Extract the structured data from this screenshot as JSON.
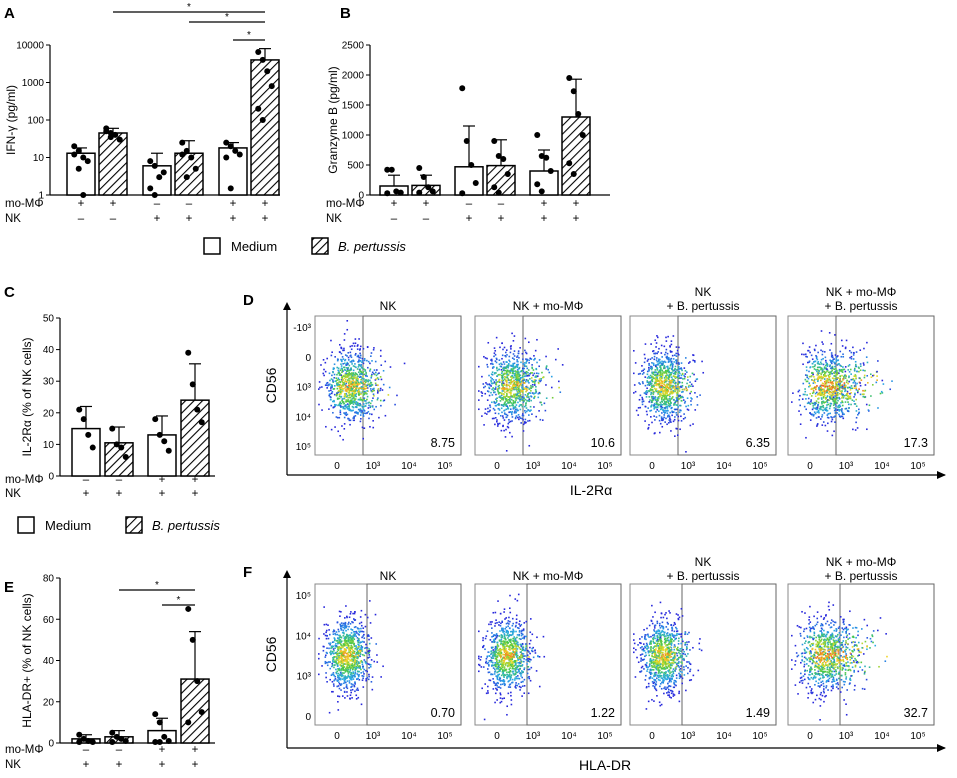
{
  "legend_medium": "Medium",
  "legend_bp": "B. pertussis",
  "markers": {
    "momphi": "mo-MΦ",
    "nk": "NK"
  },
  "chart_data": [
    {
      "panel": "A",
      "type": "bar",
      "ylabel": "IFN-γ (pg/ml)",
      "yscale": "log",
      "ylim": [
        1,
        10000
      ],
      "yticks": [
        {
          "v": 1,
          "label": "1"
        },
        {
          "v": 10,
          "label": "10"
        },
        {
          "v": 100,
          "label": "100"
        },
        {
          "v": 1000,
          "label": "1000"
        },
        {
          "v": 10000,
          "label": "10000"
        }
      ],
      "groups": [
        {
          "momphi": "+",
          "nk": "–"
        },
        {
          "momphi": "–",
          "nk": "+"
        },
        {
          "momphi": "+",
          "nk": "+"
        }
      ],
      "series": [
        {
          "name": "Medium",
          "values": [
            13,
            6,
            18
          ],
          "err_hi": [
            18,
            13,
            25
          ]
        },
        {
          "name": "B. pertussis",
          "values": [
            45,
            13,
            4000
          ],
          "err_hi": [
            60,
            28,
            8000
          ]
        }
      ],
      "points": [
        [
          [
            20,
            15,
            10,
            8,
            12,
            5,
            1
          ],
          [
            60,
            45,
            40,
            30,
            50,
            35
          ]
        ],
        [
          [
            8,
            6,
            3,
            4,
            1.5,
            1
          ],
          [
            25,
            15,
            10,
            5,
            12,
            3
          ]
        ],
        [
          [
            25,
            20,
            15,
            12,
            10,
            1.5
          ],
          [
            6500,
            4000,
            2000,
            800,
            200,
            100
          ]
        ]
      ],
      "significance": [
        {
          "from": [
            0,
            1
          ],
          "to": [
            2,
            1
          ],
          "label": "*"
        },
        {
          "from": [
            1,
            1
          ],
          "to": [
            2,
            1
          ],
          "label": "*"
        },
        {
          "from": [
            2,
            0
          ],
          "to": [
            2,
            1
          ],
          "label": "*"
        }
      ]
    },
    {
      "panel": "B",
      "type": "bar",
      "ylabel": "Granzyme B (pg/ml)",
      "yscale": "linear",
      "ylim": [
        0,
        2500
      ],
      "yticks": [
        {
          "v": 0,
          "label": "0"
        },
        {
          "v": 500,
          "label": "500"
        },
        {
          "v": 1000,
          "label": "1000"
        },
        {
          "v": 1500,
          "label": "1500"
        },
        {
          "v": 2000,
          "label": "2000"
        },
        {
          "v": 2500,
          "label": "2500"
        }
      ],
      "groups": [
        {
          "momphi": "+",
          "nk": "–"
        },
        {
          "momphi": "–",
          "nk": "+"
        },
        {
          "momphi": "+",
          "nk": "+"
        }
      ],
      "series": [
        {
          "name": "Medium",
          "values": [
            150,
            470,
            400
          ],
          "err_hi": [
            330,
            1150,
            750
          ]
        },
        {
          "name": "B. pertussis",
          "values": [
            160,
            490,
            1300
          ],
          "err_hi": [
            330,
            920,
            1930
          ]
        }
      ],
      "points": [
        [
          [
            420,
            420,
            60,
            40,
            30
          ],
          [
            450,
            300,
            130,
            60,
            40
          ]
        ],
        [
          [
            1780,
            900,
            500,
            200,
            30
          ],
          [
            900,
            650,
            600,
            350,
            130,
            40
          ]
        ],
        [
          [
            1000,
            650,
            620,
            400,
            180,
            60
          ],
          [
            1950,
            1730,
            1350,
            1000,
            530,
            350
          ]
        ]
      ],
      "significance": []
    },
    {
      "panel": "C",
      "type": "bar",
      "ylabel": "IL-2Rα (% of NK cells)",
      "yscale": "linear",
      "ylim": [
        0,
        50
      ],
      "yticks": [
        {
          "v": 0,
          "label": "0"
        },
        {
          "v": 10,
          "label": "10"
        },
        {
          "v": 20,
          "label": "20"
        },
        {
          "v": 30,
          "label": "30"
        },
        {
          "v": 40,
          "label": "40"
        },
        {
          "v": 50,
          "label": "50"
        }
      ],
      "groups": [
        {
          "momphi": "–",
          "nk": "+"
        },
        {
          "momphi": "+",
          "nk": "+"
        }
      ],
      "series": [
        {
          "name": "Medium",
          "values": [
            15,
            13
          ],
          "err_hi": [
            22,
            19
          ]
        },
        {
          "name": "B. pertussis",
          "values": [
            10.5,
            24
          ],
          "err_hi": [
            15.5,
            35.5
          ]
        }
      ],
      "points": [
        [
          [
            21,
            18,
            13,
            9
          ],
          [
            15,
            10,
            9,
            6
          ]
        ],
        [
          [
            18,
            13,
            11,
            8
          ],
          [
            39,
            29,
            21,
            17
          ]
        ]
      ],
      "significance": []
    },
    {
      "panel": "E",
      "type": "bar",
      "ylabel": "HLA-DR+ (% of NK cells)",
      "yscale": "linear",
      "ylim": [
        0,
        80
      ],
      "yticks": [
        {
          "v": 0,
          "label": "0"
        },
        {
          "v": 20,
          "label": "20"
        },
        {
          "v": 40,
          "label": "40"
        },
        {
          "v": 60,
          "label": "60"
        },
        {
          "v": 80,
          "label": "80"
        }
      ],
      "groups": [
        {
          "momphi": "–",
          "nk": "+"
        },
        {
          "momphi": "+",
          "nk": "+"
        }
      ],
      "series": [
        {
          "name": "Medium",
          "values": [
            2,
            6
          ],
          "err_hi": [
            4,
            12
          ]
        },
        {
          "name": "B. pertussis",
          "values": [
            3,
            31
          ],
          "err_hi": [
            6,
            54
          ]
        }
      ],
      "points": [
        [
          [
            4,
            2,
            1,
            0.5,
            0.5
          ],
          [
            5,
            3,
            2,
            1,
            0.5
          ]
        ],
        [
          [
            14,
            10,
            3,
            1,
            0.5,
            0.5
          ],
          [
            65,
            50,
            30,
            15,
            10
          ]
        ]
      ],
      "significance": [
        {
          "from": [
            0,
            1
          ],
          "to": [
            1,
            1
          ],
          "label": "*"
        },
        {
          "from": [
            1,
            0
          ],
          "to": [
            1,
            1
          ],
          "label": "*"
        }
      ]
    },
    {
      "panel": "D",
      "type": "scatter",
      "xlabel": "IL-2Rα",
      "ylabel": "CD56",
      "xticks": [
        "0",
        "10³",
        "10⁴",
        "10⁵"
      ],
      "yticks": [
        "-10³",
        "0",
        "10³",
        "10⁴",
        "10⁵"
      ],
      "plots": [
        {
          "title1": "NK",
          "title2": "",
          "gate_pct": "8.75",
          "spread": 0.6
        },
        {
          "title1": "NK + mo-MΦ",
          "title2": "",
          "gate_pct": "10.6",
          "spread": 0.7
        },
        {
          "title1": "NK",
          "title2": "+ B. pertussis",
          "gate_pct": "6.35",
          "spread": 0.5
        },
        {
          "title1": "NK + mo-MΦ",
          "title2": "+ B. pertussis",
          "gate_pct": "17.3",
          "spread": 1.0
        }
      ]
    },
    {
      "panel": "F",
      "type": "scatter",
      "xlabel": "HLA-DR",
      "ylabel": "CD56",
      "xticks": [
        "0",
        "10³",
        "10⁴",
        "10⁵"
      ],
      "yticks": [
        "10⁵",
        "10⁴",
        "10³",
        "0"
      ],
      "plots": [
        {
          "title1": "NK",
          "title2": "",
          "gate_pct": "0.70",
          "spread": 0.3
        },
        {
          "title1": "NK + mo-MΦ",
          "title2": "",
          "gate_pct": "1.22",
          "spread": 0.35
        },
        {
          "title1": "NK",
          "title2": "+ B. pertussis",
          "gate_pct": "1.49",
          "spread": 0.4
        },
        {
          "title1": "NK + mo-MΦ",
          "title2": "+ B. pertussis",
          "gate_pct": "32.7",
          "spread": 0.9
        }
      ]
    }
  ]
}
